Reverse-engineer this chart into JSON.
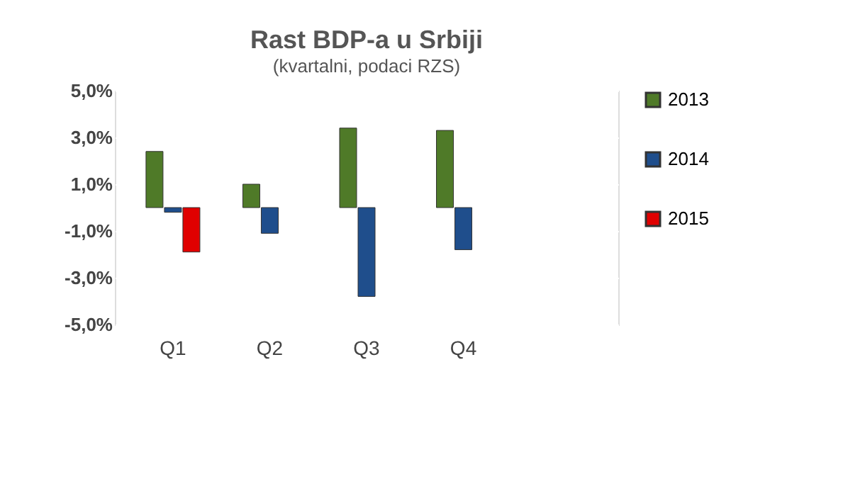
{
  "chart_data": {
    "type": "bar",
    "title": "Rast BDP-a u Srbiji",
    "subtitle": "(kvartalni, podaci RZS)",
    "categories": [
      "Q1",
      "Q2",
      "Q3",
      "Q4",
      null
    ],
    "series": [
      {
        "name": "2013",
        "color": "#4f7a28",
        "values": [
          2.4,
          1.0,
          3.4,
          3.3,
          null
        ]
      },
      {
        "name": "2014",
        "color": "#1f4e8c",
        "values": [
          -0.2,
          -1.1,
          -3.8,
          -1.8,
          null
        ]
      },
      {
        "name": "2015",
        "color": "#e00000",
        "values": [
          -1.9,
          null,
          null,
          null,
          null
        ]
      }
    ],
    "ylim": [
      -5,
      5
    ],
    "yticks": [
      {
        "value": 5,
        "label": "5,0%"
      },
      {
        "value": 3,
        "label": "3,0%"
      },
      {
        "value": 1,
        "label": "1,0%"
      },
      {
        "value": -1,
        "label": "-1,0%"
      },
      {
        "value": -3,
        "label": "-3,0%"
      },
      {
        "value": -5,
        "label": "-5,0%"
      }
    ],
    "grid": "y",
    "legend": "right"
  }
}
